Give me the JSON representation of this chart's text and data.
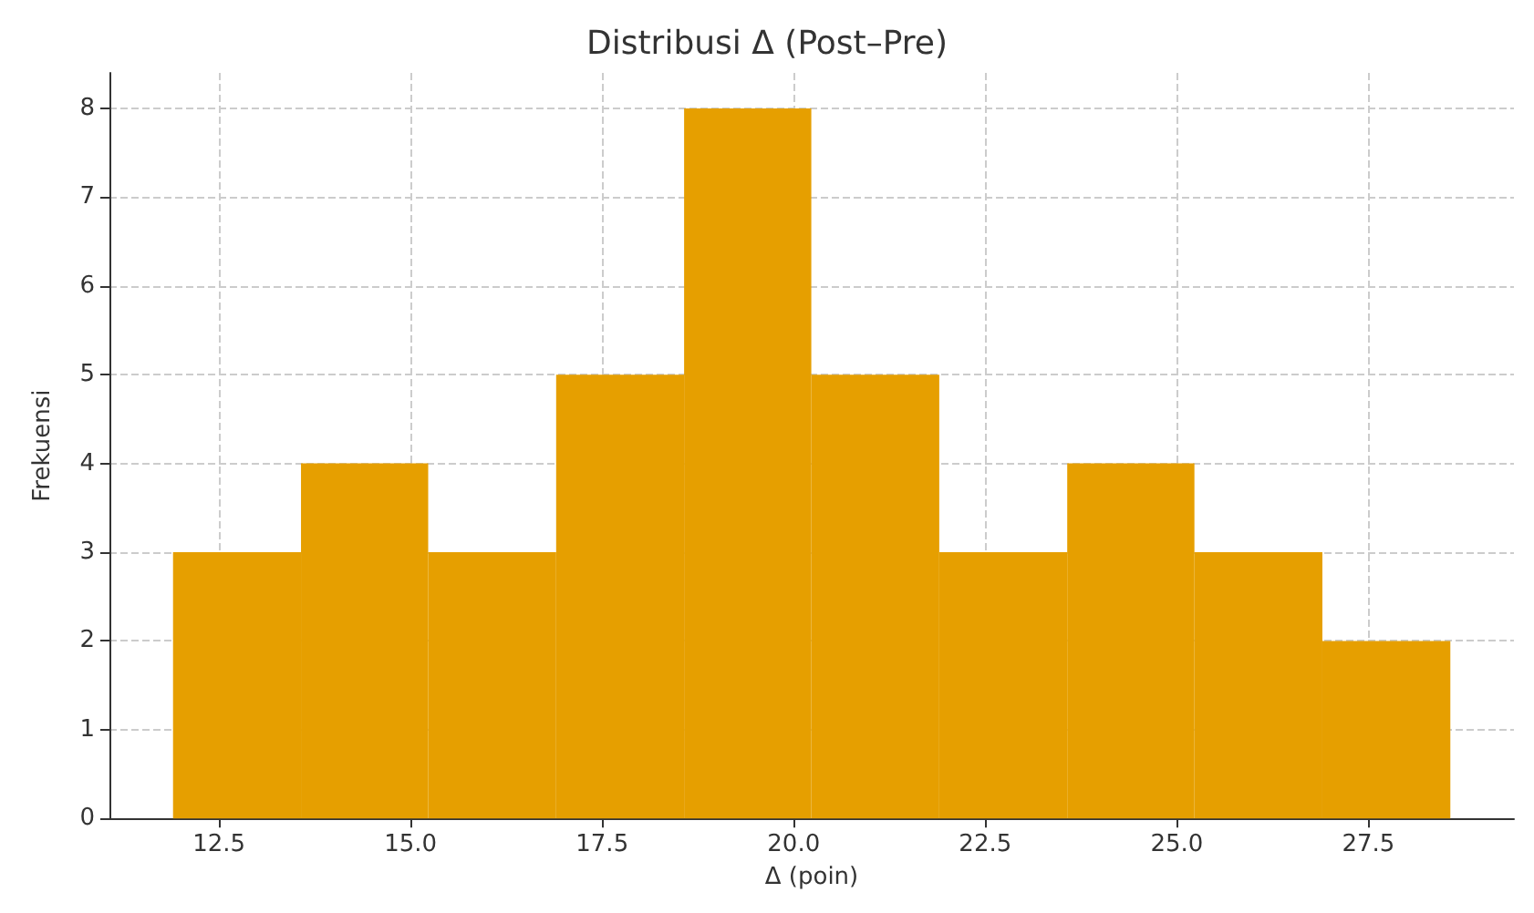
{
  "chart_data": {
    "type": "histogram",
    "title": "Distribusi Δ (Post–Pre)",
    "xlabel": "Δ (poin)",
    "ylabel": "Frekuensi",
    "bins": [
      11.9,
      13.57,
      15.23,
      16.9,
      18.57,
      20.23,
      21.9,
      23.57,
      25.23,
      26.9,
      28.57
    ],
    "values": [
      3,
      4,
      3,
      5,
      8,
      5,
      3,
      4,
      3,
      2
    ],
    "color": "#e69f00",
    "xlim": [
      11.07,
      29.4
    ],
    "xticks": [
      12.5,
      {
        "value": 15,
        "label": "15.0"
      },
      17.5,
      {
        "value": 20,
        "label": "20.0"
      },
      22.5,
      {
        "value": 25,
        "label": "25.0"
      },
      27.5
    ],
    "ylim": [
      0,
      8.4
    ],
    "yticks": [
      0,
      1,
      2,
      3,
      4,
      5,
      6,
      7,
      8
    ],
    "grid": true
  }
}
